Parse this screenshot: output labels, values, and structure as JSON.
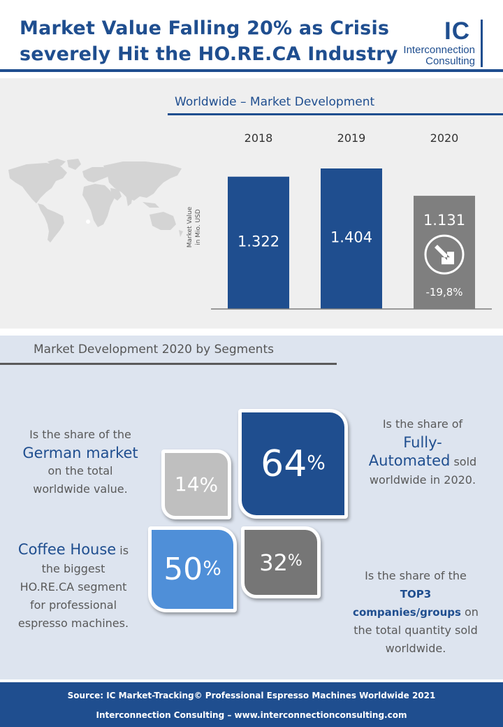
{
  "header": {
    "title_line1": "Market Value Falling 20% as Crisis",
    "title_line2": "severely Hit the HO.RE.CA Industry",
    "logo_mark": "IC",
    "logo_line1": "Interconnection",
    "logo_line2": "Consulting"
  },
  "section1": {
    "title": "Worldwide – Market Development"
  },
  "chart_data": {
    "type": "bar",
    "categories": [
      "2018",
      "2019",
      "2020"
    ],
    "values": [
      1322,
      1404,
      1131
    ],
    "data_labels": [
      "1.322",
      "1.404",
      "1.131"
    ],
    "ylabel_line1": "Market Value",
    "ylabel_line2": "in Mio. USD",
    "ylim": [
      0,
      1404
    ],
    "change_label": "-19,8%",
    "change_icon": "arrow-down-right-icon",
    "colors": {
      "bar": "#1f4e8f",
      "bar_highlight": "#7f7f7f"
    }
  },
  "section2": {
    "title": "Market Development 2020 by Segments",
    "boxes": {
      "german": {
        "num": "14",
        "pct": "%"
      },
      "fully": {
        "num": "64",
        "pct": "%"
      },
      "coffee": {
        "num": "50",
        "pct": "%"
      },
      "top3": {
        "num": "32",
        "pct": "%"
      }
    },
    "german_text": {
      "line1": "Is the share of the",
      "highlight": "German market",
      "line3": "on the total",
      "line4": "worldwide value."
    },
    "fully_text": {
      "line1": "Is the share of",
      "highlight1": "Fully-",
      "highlight2": "Automated",
      "after": " sold",
      "line4": "worldwide in 2020."
    },
    "coffee_text": {
      "highlight": "Coffee House",
      "after": " is",
      "line2": "the biggest",
      "line3": "HO.RE.CA segment",
      "line4": "for professional",
      "line5": "espresso machines."
    },
    "top3_text": {
      "line1": "Is the share of the",
      "highlight1": "TOP3",
      "highlight2": "companies/groups",
      "after": "  on",
      "line4": "the total quantity sold",
      "line5": "worldwide."
    }
  },
  "footer": {
    "source": "Source: IC Market-Tracking© Professional Espresso Machines Worldwide 2021",
    "contact": "Interconnection Consulting –  www.interconnectionconsulting.com"
  },
  "colors": {
    "brand": "#1f4e8f",
    "panel": "#efefef",
    "panel2": "#dde4ef"
  },
  "icons": {
    "map": "world-map-icon"
  }
}
